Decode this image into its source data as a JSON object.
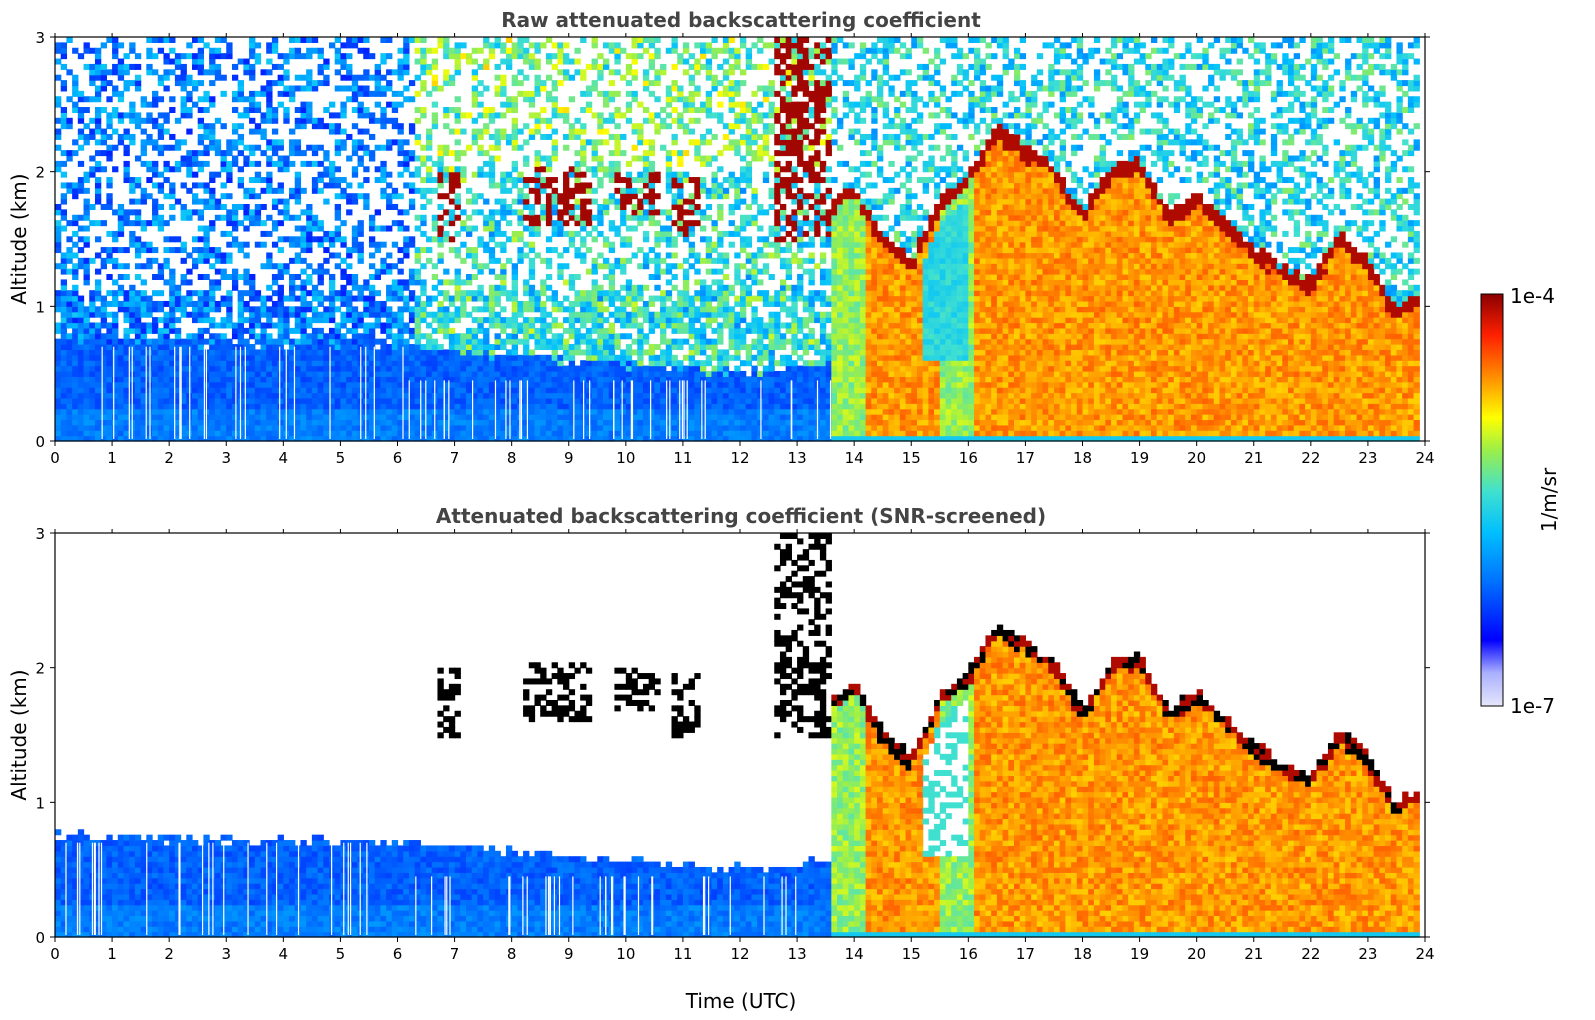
{
  "chart_data": [
    {
      "type": "heatmap",
      "title": "Raw attenuated backscattering coefficient",
      "xlabel": "",
      "ylabel": "Altitude (km)",
      "xlim": [
        0,
        24
      ],
      "ylim": [
        0,
        3
      ],
      "xticks": [
        "0",
        "1",
        "2",
        "3",
        "4",
        "5",
        "6",
        "7",
        "8",
        "9",
        "10",
        "11",
        "12",
        "13",
        "14",
        "15",
        "16",
        "17",
        "18",
        "19",
        "20",
        "21",
        "22",
        "23",
        "24"
      ],
      "yticks": [
        "0",
        "1",
        "2",
        "3"
      ],
      "screened": false,
      "layer_top_km": [
        [
          0,
          0.75
        ],
        [
          6.2,
          0.7
        ],
        [
          9,
          0.6
        ],
        [
          12.5,
          0.5
        ],
        [
          13.6,
          0.6
        ],
        [
          16,
          0.7
        ]
      ],
      "cloud_top_km": [
        [
          13.6,
          1.8
        ],
        [
          14,
          1.9
        ],
        [
          14.5,
          1.55
        ],
        [
          15,
          1.35
        ],
        [
          15.5,
          1.8
        ],
        [
          16,
          1.98
        ],
        [
          16.5,
          2.35
        ],
        [
          17,
          2.2
        ],
        [
          17.5,
          2.05
        ],
        [
          18,
          1.7
        ],
        [
          18.5,
          2.05
        ],
        [
          19,
          2.1
        ],
        [
          19.5,
          1.7
        ],
        [
          20,
          1.85
        ],
        [
          20.5,
          1.65
        ],
        [
          21,
          1.45
        ],
        [
          21.5,
          1.3
        ],
        [
          22,
          1.2
        ],
        [
          22.5,
          1.55
        ],
        [
          23,
          1.35
        ],
        [
          23.5,
          1.0
        ],
        [
          23.8,
          1.1
        ]
      ],
      "elevated_layers": [
        {
          "x": [
            6.7,
            7.1
          ],
          "y": [
            1.5,
            2.0
          ]
        },
        {
          "x": [
            8.2,
            9.4
          ],
          "y": [
            1.6,
            2.05
          ]
        },
        {
          "x": [
            9.8,
            10.6
          ],
          "y": [
            1.7,
            2.0
          ]
        },
        {
          "x": [
            10.8,
            11.3
          ],
          "y": [
            1.5,
            1.95
          ]
        },
        {
          "x": [
            12.6,
            13.6
          ],
          "y": [
            1.5,
            3.0
          ]
        }
      ]
    },
    {
      "type": "heatmap",
      "title": "Attenuated backscattering coefficient (SNR-screened)",
      "xlabel": "Time (UTC)",
      "ylabel": "Altitude (km)",
      "xlim": [
        0,
        24
      ],
      "ylim": [
        0,
        3
      ],
      "xticks": [
        "0",
        "1",
        "2",
        "3",
        "4",
        "5",
        "6",
        "7",
        "8",
        "9",
        "10",
        "11",
        "12",
        "13",
        "14",
        "15",
        "16",
        "17",
        "18",
        "19",
        "20",
        "21",
        "22",
        "23",
        "24"
      ],
      "yticks": [
        "0",
        "1",
        "2",
        "3"
      ],
      "screened": true
    }
  ],
  "colorbar": {
    "label": "1/m/sr",
    "max_label": "1e-4",
    "min_label": "1e-7",
    "scale": "log",
    "range": [
      1e-07,
      0.0001
    ],
    "colormap": [
      "#e6e6fa",
      "#0000ff",
      "#00bfff",
      "#40e0d0",
      "#ffff00",
      "#ff8c00",
      "#ff0000",
      "#8b0000"
    ]
  }
}
